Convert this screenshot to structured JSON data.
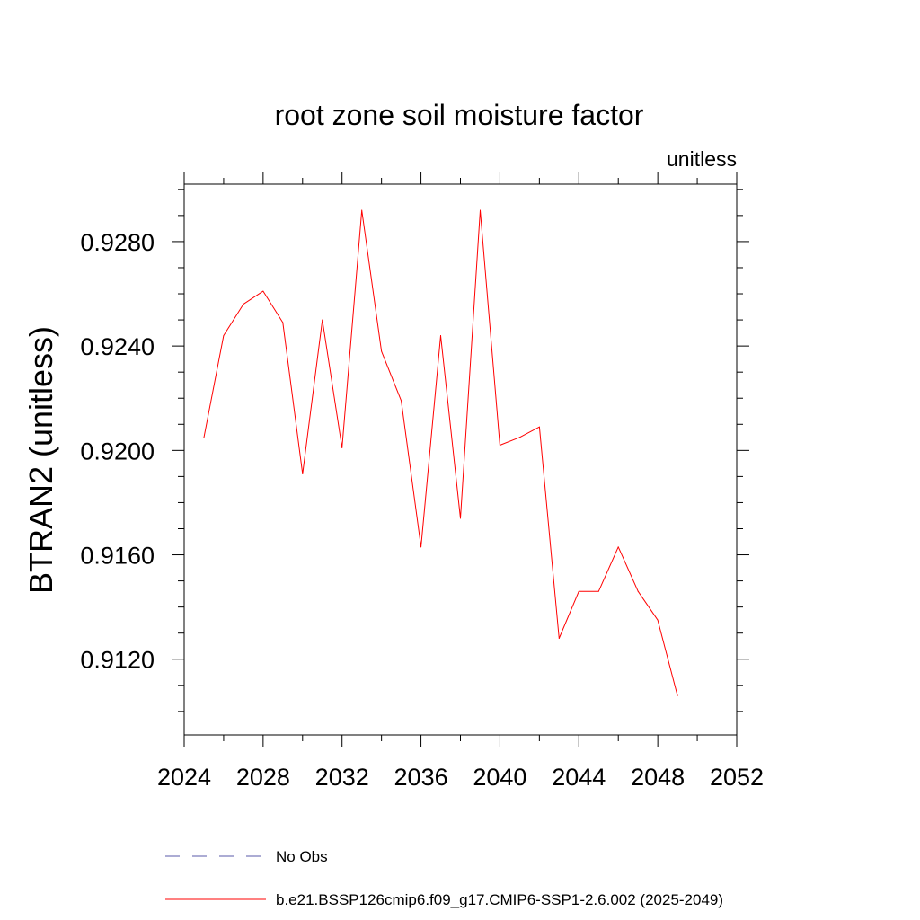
{
  "chart_data": {
    "type": "line",
    "title": "root zone soil moisture factor",
    "units_label": "unitless",
    "xlabel": "",
    "ylabel": "BTRAN2  (unitless)",
    "xlim": [
      2024,
      2052
    ],
    "ylim": [
      0.9091,
      0.9302
    ],
    "x_ticks": [
      2024,
      2028,
      2032,
      2036,
      2040,
      2044,
      2048,
      2052
    ],
    "x_minor_step": 2,
    "y_ticks": [
      0.912,
      0.916,
      0.92,
      0.924,
      0.928
    ],
    "y_tick_labels": [
      "0.9120",
      "0.9160",
      "0.9200",
      "0.9240",
      "0.9280"
    ],
    "y_minor_step": 0.001,
    "grid": false,
    "legend_position": "bottom",
    "series": [
      {
        "name": "b.e21.BSSP126cmip6.f09_g17.CMIP6-SSP1-2.6.002 (2025-2049)",
        "color": "#ff0000",
        "style": "solid",
        "x": [
          2025,
          2026,
          2027,
          2028,
          2029,
          2030,
          2031,
          2032,
          2033,
          2034,
          2035,
          2036,
          2037,
          2038,
          2039,
          2040,
          2041,
          2042,
          2043,
          2044,
          2045,
          2046,
          2047,
          2048,
          2049
        ],
        "values": [
          0.9205,
          0.9244,
          0.9256,
          0.9261,
          0.9249,
          0.9191,
          0.925,
          0.9201,
          0.9292,
          0.9238,
          0.9219,
          0.9163,
          0.9244,
          0.9174,
          0.9292,
          0.9202,
          0.9205,
          0.9209,
          0.9128,
          0.9146,
          0.9146,
          0.9163,
          0.9146,
          0.9135,
          0.9106
        ]
      }
    ],
    "legend": [
      {
        "label": "No Obs",
        "color": "#5a5aa8",
        "style": "dashed"
      },
      {
        "label": "b.e21.BSSP126cmip6.f09_g17.CMIP6-SSP1-2.6.002 (2025-2049)",
        "color": "#ff0000",
        "style": "solid"
      }
    ]
  }
}
